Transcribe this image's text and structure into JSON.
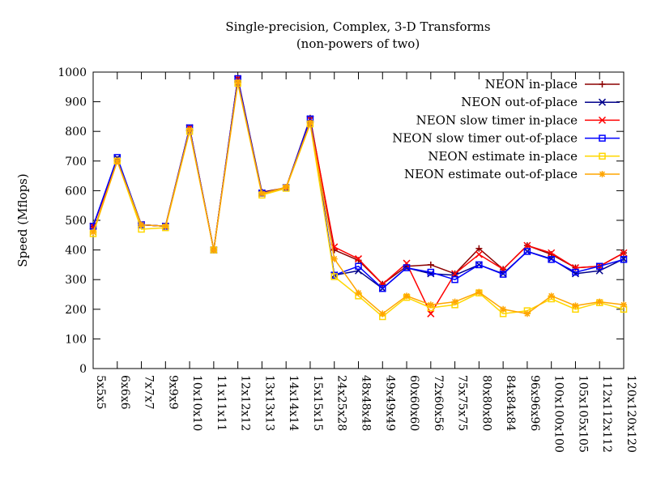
{
  "chart_data": {
    "type": "line",
    "title": "Single-precision, Complex, 3-D Transforms",
    "subtitle": "(non-powers of two)",
    "xlabel": "",
    "ylabel": "Speed (Mflops)",
    "ylim": [
      0,
      1000
    ],
    "yticks": [
      0,
      100,
      200,
      300,
      400,
      500,
      600,
      700,
      800,
      900,
      1000
    ],
    "grid": false,
    "legend_position": "top-right",
    "categories": [
      "5x5x5",
      "6x6x6",
      "7x7x7",
      "9x9x9",
      "10x10x10",
      "11x11x11",
      "12x12x12",
      "13x13x13",
      "14x14x14",
      "15x15x15",
      "24x25x28",
      "48x48x48",
      "49x49x49",
      "60x60x60",
      "72x60x56",
      "75x75x75",
      "80x80x80",
      "84x84x84",
      "96x96x96",
      "100x100x100",
      "105x105x105",
      "112x112x112",
      "120x120x120"
    ],
    "series": [
      {
        "name": "NEON in-place",
        "color": "#8b0000",
        "marker": "plus",
        "values": [
          480,
          705,
          485,
          480,
          810,
          400,
          980,
          595,
          610,
          845,
          400,
          365,
          285,
          345,
          350,
          320,
          405,
          335,
          415,
          385,
          340,
          345,
          390
        ]
      },
      {
        "name": "NEON out-of-place",
        "color": "#00008b",
        "marker": "cross",
        "values": [
          480,
          710,
          485,
          480,
          812,
          400,
          975,
          592,
          610,
          842,
          315,
          330,
          270,
          340,
          320,
          315,
          350,
          320,
          395,
          370,
          320,
          330,
          370
        ]
      },
      {
        "name": "NEON slow timer in-place",
        "color": "#ff0000",
        "marker": "cross",
        "values": [
          480,
          700,
          485,
          480,
          812,
          400,
          978,
          590,
          610,
          840,
          410,
          370,
          285,
          355,
          185,
          320,
          385,
          335,
          415,
          390,
          340,
          345,
          390
        ]
      },
      {
        "name": "NEON slow timer out-of-place",
        "color": "#0000ff",
        "marker": "square",
        "values": [
          480,
          712,
          485,
          480,
          812,
          400,
          978,
          592,
          610,
          842,
          315,
          345,
          270,
          340,
          325,
          300,
          350,
          318,
          395,
          368,
          325,
          345,
          368
        ]
      },
      {
        "name": "NEON estimate in-place",
        "color": "#ffd700",
        "marker": "square",
        "values": [
          455,
          700,
          470,
          475,
          800,
          400,
          962,
          585,
          608,
          825,
          310,
          245,
          175,
          240,
          205,
          215,
          255,
          185,
          195,
          235,
          200,
          222,
          200
        ]
      },
      {
        "name": "NEON estimate out-of-place",
        "color": "#ffa500",
        "marker": "star",
        "values": [
          460,
          700,
          485,
          480,
          805,
          400,
          965,
          590,
          612,
          828,
          370,
          255,
          185,
          245,
          215,
          225,
          258,
          200,
          185,
          245,
          212,
          225,
          215
        ]
      }
    ]
  }
}
